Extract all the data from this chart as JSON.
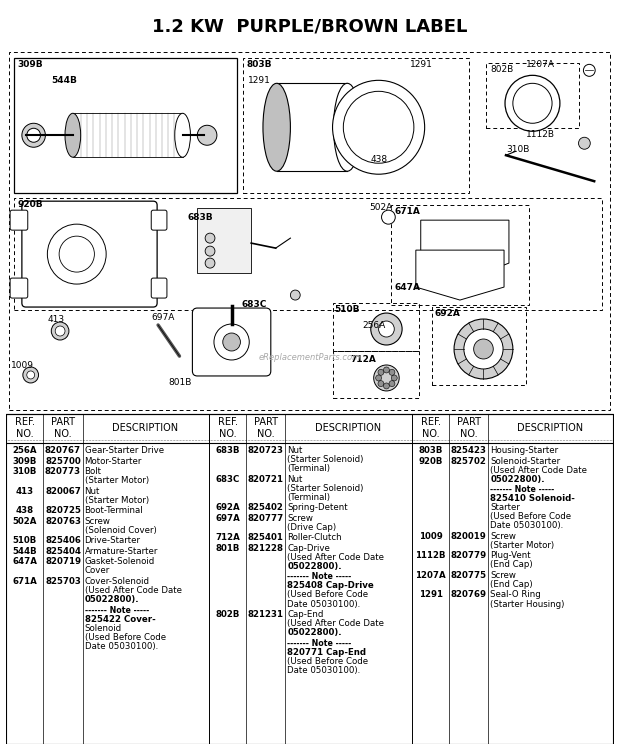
{
  "title": "1.2 KW  PURPLE/BROWN LABEL",
  "title_fontsize": 13,
  "bg_color": "#ffffff",
  "col1_rows": [
    [
      "256A",
      "820767",
      "Gear-Starter Drive"
    ],
    [
      "309B",
      "825700",
      "Motor-Starter"
    ],
    [
      "310B",
      "820773",
      "Bolt\n(Starter Motor)"
    ],
    [
      "413",
      "820067",
      "Nut\n(Starter Motor)"
    ],
    [
      "438",
      "820725",
      "Boot-Terminal"
    ],
    [
      "502A",
      "820763",
      "Screw\n(Solenoid Cover)"
    ],
    [
      "510B",
      "825406",
      "Drive-Starter"
    ],
    [
      "544B",
      "825404",
      "Armature-Starter"
    ],
    [
      "647A",
      "820719",
      "Gasket-Solenoid\nCover"
    ],
    [
      "671A",
      "825703",
      "Cover-Solenoid\n(Used After Code Date\n05022800)."
    ],
    [
      "",
      "",
      "------- Note -----\n825422 Cover-\nSolenoid\n(Used Before Code\nDate 05030100)."
    ]
  ],
  "col2_rows": [
    [
      "683B",
      "820723",
      "Nut\n(Starter Solenoid)\n(Terminal)"
    ],
    [
      "683C",
      "820721",
      "Nut\n(Starter Solenoid)\n(Terminal)"
    ],
    [
      "692A",
      "825402",
      "Spring-Detent"
    ],
    [
      "697A",
      "820777",
      "Screw\n(Drive Cap)"
    ],
    [
      "712A",
      "825401",
      "Roller-Clutch"
    ],
    [
      "801B",
      "821228",
      "Cap-Drive\n(Used After Code Date\n05022800)."
    ],
    [
      "",
      "",
      "------- Note -----\n825408 Cap-Drive\n(Used Before Code\nDate 05030100)."
    ],
    [
      "802B",
      "821231",
      "Cap-End\n(Used After Code Date\n05022800)."
    ],
    [
      "",
      "",
      "------- Note -----\n820771 Cap-End\n(Used Before Code\nDate 05030100)."
    ]
  ],
  "col3_rows": [
    [
      "803B",
      "825423",
      "Housing-Starter"
    ],
    [
      "920B",
      "825702",
      "Solenoid-Starter\n(Used After Code Date\n05022800)."
    ],
    [
      "",
      "",
      "------- Note -----\n825410 Solenoid-\nStarter\n(Used Before Code\nDate 05030100)."
    ],
    [
      "1009",
      "820019",
      "Screw\n(Starter Motor)"
    ],
    [
      "1112B",
      "820779",
      "Plug-Vent\n(End Cap)"
    ],
    [
      "1207A",
      "820775",
      "Screw\n(End Cap)"
    ],
    [
      "1291",
      "820769",
      "Seal-O Ring\n(Starter Housing)"
    ]
  ]
}
